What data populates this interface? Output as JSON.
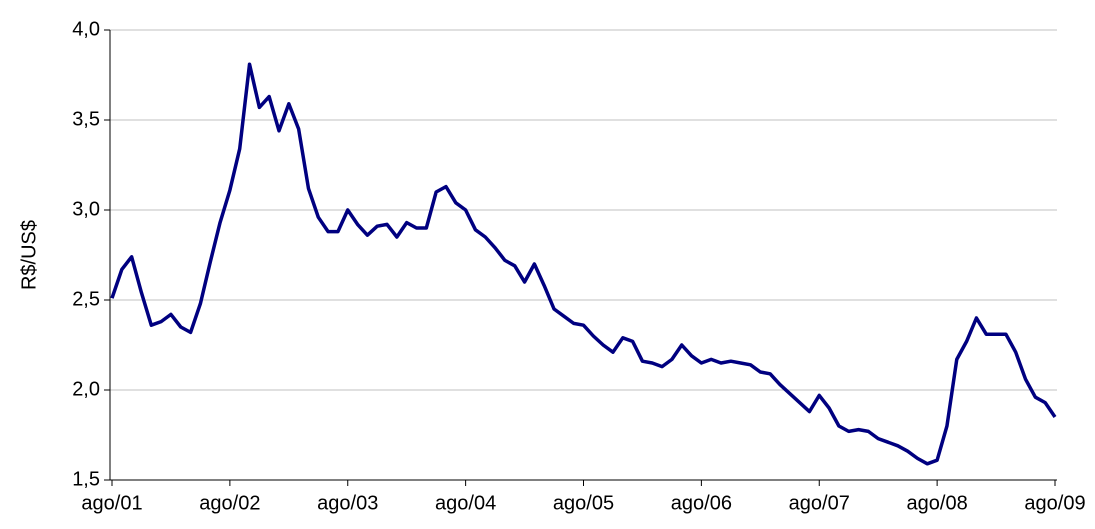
{
  "chart_data": {
    "type": "line",
    "y_label": "R$/US$",
    "categories": [
      "ago/01",
      null,
      null,
      null,
      null,
      null,
      null,
      null,
      null,
      null,
      null,
      null,
      "ago/02",
      null,
      null,
      null,
      null,
      null,
      null,
      null,
      null,
      null,
      null,
      null,
      "ago/03",
      null,
      null,
      null,
      null,
      null,
      null,
      null,
      null,
      null,
      null,
      null,
      "ago/04",
      null,
      null,
      null,
      null,
      null,
      null,
      null,
      null,
      null,
      null,
      null,
      "ago/05",
      null,
      null,
      null,
      null,
      null,
      null,
      null,
      null,
      null,
      null,
      null,
      "ago/06",
      null,
      null,
      null,
      null,
      null,
      null,
      null,
      null,
      null,
      null,
      null,
      "ago/07",
      null,
      null,
      null,
      null,
      null,
      null,
      null,
      null,
      null,
      null,
      null,
      "ago/08",
      null,
      null,
      null,
      null,
      null,
      null,
      null,
      null,
      null,
      null,
      null,
      "ago/09"
    ],
    "series": [
      {
        "color": "#000080",
        "values": [
          2.51,
          2.67,
          2.74,
          2.54,
          2.36,
          2.38,
          2.42,
          2.35,
          2.32,
          2.48,
          2.71,
          2.93,
          3.11,
          3.34,
          3.81,
          3.57,
          3.63,
          3.44,
          3.59,
          3.45,
          3.12,
          2.96,
          2.88,
          2.88,
          3.0,
          2.92,
          2.86,
          2.91,
          2.92,
          2.85,
          2.93,
          2.9,
          2.9,
          3.1,
          3.13,
          3.04,
          3.0,
          2.89,
          2.85,
          2.79,
          2.72,
          2.69,
          2.6,
          2.7,
          2.58,
          2.45,
          2.41,
          2.37,
          2.36,
          2.3,
          2.25,
          2.21,
          2.29,
          2.27,
          2.16,
          2.15,
          2.13,
          2.17,
          2.25,
          2.19,
          2.15,
          2.17,
          2.15,
          2.16,
          2.15,
          2.14,
          2.1,
          2.09,
          2.03,
          1.98,
          1.93,
          1.88,
          1.97,
          1.9,
          1.8,
          1.77,
          1.78,
          1.77,
          1.73,
          1.71,
          1.69,
          1.66,
          1.62,
          1.59,
          1.61,
          1.8,
          2.17,
          2.27,
          2.4,
          2.31,
          2.31,
          2.31,
          2.21,
          2.06,
          1.96,
          1.93,
          1.85
        ]
      }
    ],
    "ylim": [
      1.5,
      4.0
    ],
    "yticks": [
      {
        "value": 1.5,
        "label": "1,5"
      },
      {
        "value": 2.0,
        "label": "2,0"
      },
      {
        "value": 2.5,
        "label": "2,5"
      },
      {
        "value": 3.0,
        "label": "3,0"
      },
      {
        "value": 3.5,
        "label": "3,5"
      },
      {
        "value": 4.0,
        "label": "4,0"
      }
    ],
    "grid": true
  }
}
